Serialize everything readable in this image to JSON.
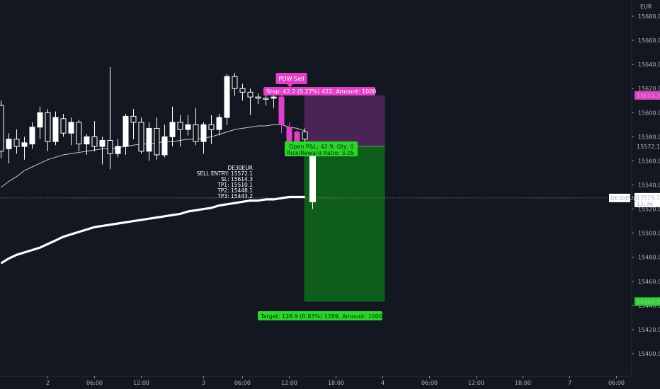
{
  "chart_data": {
    "type": "candlestick",
    "currency": "EUR",
    "symbol": "DE30EUR",
    "last_price": "15529.2",
    "countdown": "12:36",
    "ylim": [
      15390,
      15690
    ],
    "y_ticks": [
      15680,
      15660,
      15640,
      15620,
      15600,
      15580,
      15560,
      15540,
      15520,
      15500,
      15480,
      15460,
      15440,
      15420,
      15400
    ],
    "x_ticks": [
      {
        "label": "2",
        "bar": 6
      },
      {
        "label": "06:00",
        "bar": 12
      },
      {
        "label": "12:00",
        "bar": 18
      },
      {
        "label": "3",
        "bar": 26
      },
      {
        "label": "06:00",
        "bar": 31
      },
      {
        "label": "12:00",
        "bar": 37
      },
      {
        "label": "18:00",
        "bar": 43
      },
      {
        "label": "4",
        "bar": 49
      },
      {
        "label": "06:00",
        "bar": 55
      },
      {
        "label": "12:00",
        "bar": 61
      },
      {
        "label": "18:00",
        "bar": 67
      },
      {
        "label": "7",
        "bar": 73
      },
      {
        "label": "06:00",
        "bar": 79
      }
    ],
    "candles": [
      [
        15606,
        15610,
        15562,
        15568
      ],
      [
        15570,
        15583,
        15558,
        15578
      ],
      [
        15578,
        15586,
        15566,
        15572
      ],
      [
        15572,
        15580,
        15561,
        15575
      ],
      [
        15574,
        15592,
        15570,
        15588
      ],
      [
        15588,
        15605,
        15578,
        15600
      ],
      [
        15600,
        15603,
        15568,
        15576
      ],
      [
        15576,
        15601,
        15573,
        15596
      ],
      [
        15595,
        15599,
        15580,
        15583
      ],
      [
        15583,
        15596,
        15573,
        15592
      ],
      [
        15592,
        15594,
        15568,
        15574
      ],
      [
        15574,
        15582,
        15565,
        15580
      ],
      [
        15580,
        15593,
        15568,
        15572
      ],
      [
        15572,
        15580,
        15557,
        15577
      ],
      [
        15577,
        15638,
        15553,
        15566
      ],
      [
        15566,
        15578,
        15563,
        15572
      ],
      [
        15572,
        15599,
        15565,
        15597
      ],
      [
        15597,
        15603,
        15578,
        15592
      ],
      [
        15592,
        15596,
        15566,
        15568
      ],
      [
        15568,
        15592,
        15560,
        15587
      ],
      [
        15587,
        15596,
        15561,
        15565
      ],
      [
        15565,
        15590,
        15563,
        15580
      ],
      [
        15580,
        15605,
        15572,
        15592
      ],
      [
        15592,
        15598,
        15572,
        15586
      ],
      [
        15586,
        15598,
        15581,
        15590
      ],
      [
        15590,
        15604,
        15573,
        15576
      ],
      [
        15576,
        15592,
        15566,
        15590
      ],
      [
        15590,
        15598,
        15574,
        15586
      ],
      [
        15586,
        15599,
        15581,
        15596
      ],
      [
        15596,
        15632,
        15590,
        15630
      ],
      [
        15630,
        15633,
        15614,
        15620
      ],
      [
        15620,
        15624,
        15610,
        15617
      ],
      [
        15617,
        15620,
        15598,
        15613
      ],
      [
        15613,
        15616,
        15607,
        15612
      ],
      [
        15612,
        15616,
        15606,
        15612
      ],
      [
        15612,
        15617,
        15604,
        15613
      ],
      [
        15613,
        15616,
        15583,
        15590
      ],
      [
        15588,
        15592,
        15566,
        15571
      ],
      [
        15584,
        15586,
        15568,
        15574
      ],
      [
        15584,
        15587,
        15569,
        15578
      ],
      [
        15572,
        15576,
        15520,
        15526
      ]
    ],
    "thin_ma": [
      15538,
      15543,
      15547,
      15552,
      15555,
      15558,
      15561,
      15563,
      15565,
      15566,
      15567,
      15568,
      15569,
      15570,
      15570,
      15571,
      15572,
      15573,
      15574,
      15574,
      15575,
      15576,
      15576,
      15577,
      15578,
      15578,
      15579,
      15580,
      15582,
      15584,
      15586,
      15587,
      15588,
      15589,
      15589,
      15590,
      15590,
      15588,
      15587,
      15585
    ],
    "thick_ma": [
      15475,
      15479,
      15482,
      15484,
      15486,
      15488,
      15491,
      15494,
      15497,
      15499,
      15501,
      15503,
      15505,
      15506,
      15507,
      15508,
      15509,
      15510,
      15511,
      15512,
      15513,
      15514,
      15515,
      15516,
      15518,
      15519,
      15520,
      15521,
      15523,
      15524,
      15525,
      15526,
      15527,
      15527,
      15528,
      15528,
      15529,
      15530,
      15530,
      15530
    ],
    "pink_bars": [
      36,
      37,
      38
    ],
    "position": {
      "entry": 15572.1,
      "stop": 15614.3,
      "target": 15443.2,
      "start_bar": 39,
      "end_bar": 49,
      "stop_label": "Stop: 42.2 (0.27%) 422, Amount: 1000",
      "target_label": "Target: 128.9 (0.83%) 1289, Amount: 1000",
      "pnl_label": "Open P&L: 42.9, Qty: 0",
      "ratio_label": "Risk/Reward Ratio: 3.05"
    },
    "signal_label": "POW Sell",
    "info_lines": [
      "DE30EUR",
      "SELL ENTRY: 15572.1",
      "SL: 15614.3",
      "TP1: 15510.1",
      "TP2: 15448.1",
      "TP3: 15443.2"
    ],
    "price_tags": {
      "stop": "15614.3",
      "entry": "15572.1",
      "target": "15443.2"
    },
    "colors": {
      "background": "#131722",
      "candle": "#ffffff",
      "signal": "#e040c8",
      "stop_zone": "#5c2a66",
      "target_zone": "#0f6a1a",
      "green": "#2bd62b",
      "axis_text": "#b2b5be"
    }
  }
}
